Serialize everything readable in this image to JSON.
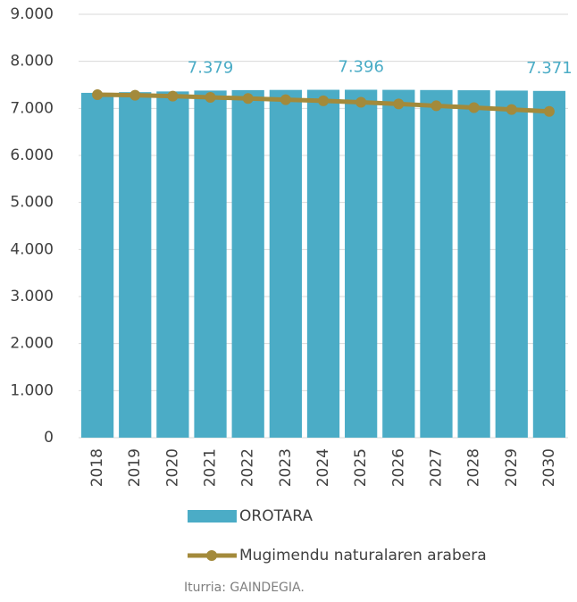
{
  "chart_data": {
    "type": "bar",
    "categories": [
      "2018",
      "2019",
      "2020",
      "2021",
      "2022",
      "2023",
      "2024",
      "2025",
      "2026",
      "2027",
      "2028",
      "2029",
      "2030"
    ],
    "series": [
      {
        "name": "OROTARA",
        "type": "bar",
        "color": "#4bacc6",
        "values": [
          7330,
          7345,
          7360,
          7379,
          7388,
          7392,
          7395,
          7396,
          7394,
          7390,
          7385,
          7378,
          7371
        ],
        "value_labels": [
          null,
          null,
          null,
          "7.379",
          null,
          null,
          null,
          "7.396",
          null,
          null,
          null,
          null,
          "7.371"
        ]
      },
      {
        "name": "Mugimendu naturalaren arabera",
        "type": "line",
        "color": "#a38a3b",
        "values": [
          7290,
          7280,
          7260,
          7235,
          7210,
          7185,
          7160,
          7130,
          7095,
          7055,
          7015,
          6975,
          6935
        ]
      }
    ],
    "ylim": [
      0,
      9000
    ],
    "yticks": [
      0,
      {
        "value": 1000,
        "label": "1.000"
      },
      {
        "value": 2000,
        "label": "2.000"
      },
      {
        "value": 3000,
        "label": "3.000"
      },
      {
        "value": 4000,
        "label": "4.000"
      },
      {
        "value": 5000,
        "label": "5.000"
      },
      {
        "value": 6000,
        "label": "6.000"
      },
      {
        "value": 7000,
        "label": "7.000"
      },
      {
        "value": 8000,
        "label": "8.000"
      },
      {
        "value": 9000,
        "label": "9.000"
      }
    ],
    "grid": true,
    "legend": "bottom",
    "note": "Iturria: GAINDEGIA."
  }
}
